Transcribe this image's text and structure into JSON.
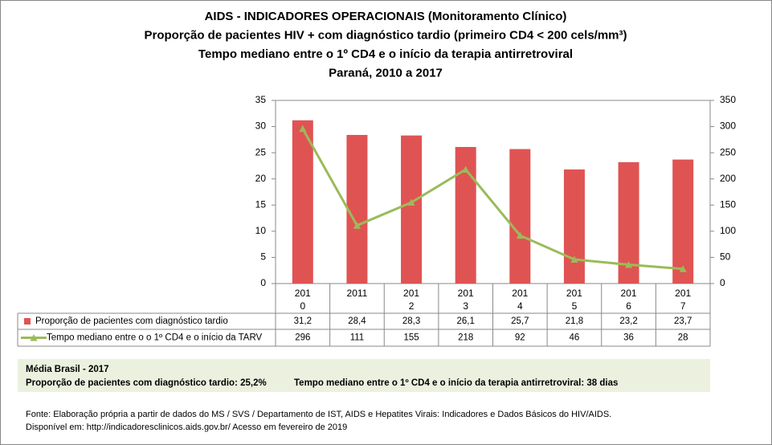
{
  "chart_data": {
    "type": "bar",
    "title_lines": [
      "AIDS - INDICADORES OPERACIONAIS (Monitoramento Clínico)",
      "Proporção de pacientes HIV + com diagnóstico tardio (primeiro CD4 < 200 cels/mm³)",
      "Tempo mediano entre o 1º CD4 e o início da terapia antirretroviral",
      "Paraná, 2010 a 2017"
    ],
    "categories": [
      "2010",
      "2011",
      "2012",
      "2013",
      "2014",
      "2015",
      "2016",
      "2017"
    ],
    "series": [
      {
        "name": "Proporção de pacientes com diagnóstico tardio",
        "type": "bar",
        "color": "#e05353",
        "axis": "y",
        "values": [
          31.2,
          28.4,
          28.3,
          26.1,
          25.7,
          21.8,
          23.2,
          23.7
        ],
        "value_labels": [
          "31,2",
          "28,4",
          "28,3",
          "26,1",
          "25,7",
          "21,8",
          "23,2",
          "23,7"
        ]
      },
      {
        "name": "Tempo mediano entre o o 1º CD4 e o início da TARV",
        "type": "line",
        "color": "#9bbb59",
        "axis": "y2",
        "values": [
          296,
          111,
          155,
          218,
          92,
          46,
          36,
          28
        ]
      }
    ],
    "ylim": [
      0,
      35
    ],
    "yticks": [
      0,
      5,
      10,
      15,
      20,
      25,
      30,
      35
    ],
    "y2lim": [
      0,
      350
    ],
    "y2ticks": [
      0,
      50,
      100,
      150,
      200,
      250,
      300,
      350
    ],
    "grid": false
  },
  "summary": {
    "heading": "Média Brasil - 2017",
    "items": [
      "Proporção de pacientes com diagnóstico  tardio: 25,2%",
      "Tempo mediano entre o 1º CD4 e o início da terapia antirretroviral: 38 dias"
    ]
  },
  "footer": [
    "Fonte: Elaboração própria a partir de dados do  MS / SVS / Departamento de IST, AIDS e Hepatites Virais: Indicadores e Dados Básicos do HIV/AIDS.",
    "Disponível em: http://indicadoresclinicos.aids.gov.br/ Acesso em fevereiro de 2019"
  ]
}
